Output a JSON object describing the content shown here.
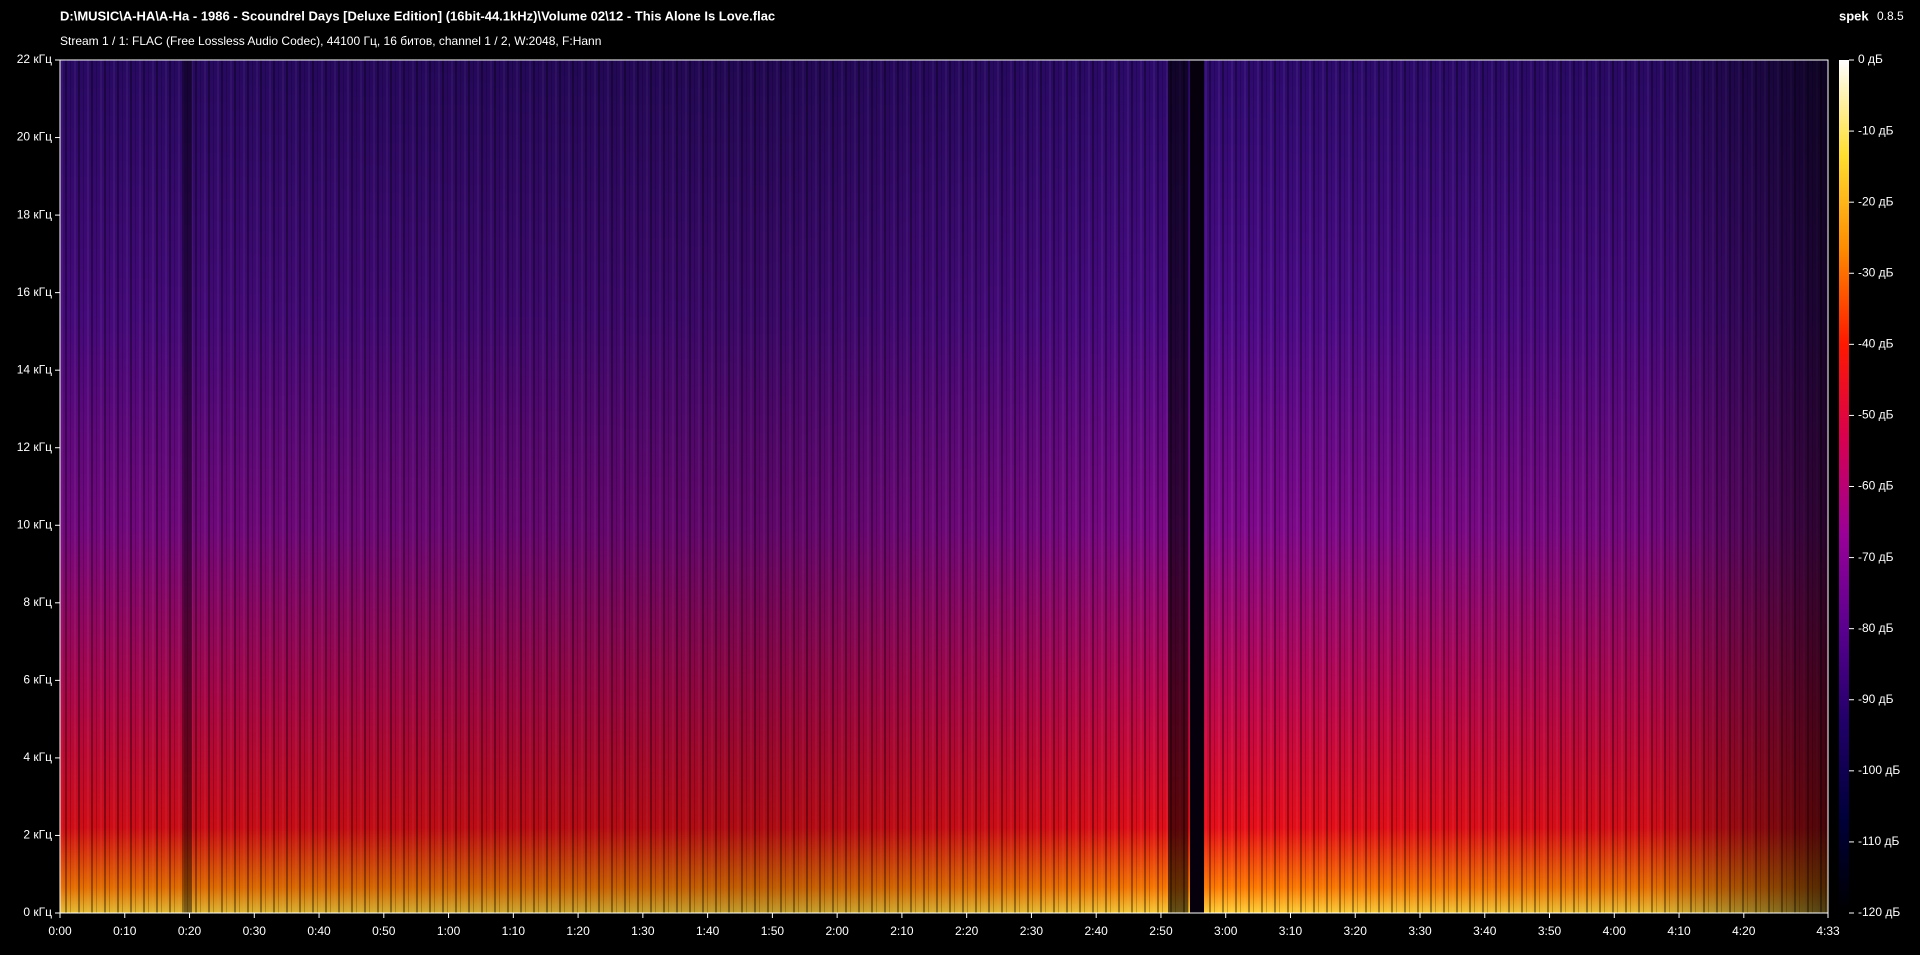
{
  "window": {
    "app": "spek",
    "version": "0.8.5"
  },
  "chart_data": {
    "type": "spectrogram",
    "title": "D:\\MUSIC\\A-HA\\A-Ha - 1986 - Scoundrel Days [Deluxe Edition] (16bit-44.1kHz)\\Volume 02\\12 - This Alone Is Love.flac",
    "subtitle": "Stream 1 / 1: FLAC (Free Lossless Audio Codec), 44100 Гц, 16 битов, channel 1 / 2, W:2048, F:Hann",
    "xlim": [
      0,
      273
    ],
    "xticks": [
      {
        "value": 0,
        "label": "0:00"
      },
      {
        "value": 10,
        "label": "0:10"
      },
      {
        "value": 20,
        "label": "0:20"
      },
      {
        "value": 30,
        "label": "0:30"
      },
      {
        "value": 40,
        "label": "0:40"
      },
      {
        "value": 50,
        "label": "0:50"
      },
      {
        "value": 60,
        "label": "1:00"
      },
      {
        "value": 70,
        "label": "1:10"
      },
      {
        "value": 80,
        "label": "1:20"
      },
      {
        "value": 90,
        "label": "1:30"
      },
      {
        "value": 100,
        "label": "1:40"
      },
      {
        "value": 110,
        "label": "1:50"
      },
      {
        "value": 120,
        "label": "2:00"
      },
      {
        "value": 130,
        "label": "2:10"
      },
      {
        "value": 140,
        "label": "2:20"
      },
      {
        "value": 150,
        "label": "2:30"
      },
      {
        "value": 160,
        "label": "2:40"
      },
      {
        "value": 170,
        "label": "2:50"
      },
      {
        "value": 180,
        "label": "3:00"
      },
      {
        "value": 190,
        "label": "3:10"
      },
      {
        "value": 200,
        "label": "3:20"
      },
      {
        "value": 210,
        "label": "3:30"
      },
      {
        "value": 220,
        "label": "3:40"
      },
      {
        "value": 230,
        "label": "3:50"
      },
      {
        "value": 240,
        "label": "4:00"
      },
      {
        "value": 250,
        "label": "4:10"
      },
      {
        "value": 260,
        "label": "4:20"
      },
      {
        "value": 273,
        "label": "4:33"
      }
    ],
    "ylim": [
      0,
      22
    ],
    "yticks": [
      {
        "value": 0,
        "label": "0 кГц"
      },
      {
        "value": 2,
        "label": "2 кГц"
      },
      {
        "value": 4,
        "label": "4 кГц"
      },
      {
        "value": 6,
        "label": "6 кГц"
      },
      {
        "value": 8,
        "label": "8 кГц"
      },
      {
        "value": 10,
        "label": "10 кГц"
      },
      {
        "value": 12,
        "label": "12 кГц"
      },
      {
        "value": 14,
        "label": "14 кГц"
      },
      {
        "value": 16,
        "label": "16 кГц"
      },
      {
        "value": 18,
        "label": "18 кГц"
      },
      {
        "value": 20,
        "label": "20 кГц"
      },
      {
        "value": 22,
        "label": "22 кГц"
      }
    ],
    "zlim": [
      -120,
      0
    ],
    "zticks": [
      {
        "value": 0,
        "label": "0 дБ"
      },
      {
        "value": -10,
        "label": "-10 дБ"
      },
      {
        "value": -20,
        "label": "-20 дБ"
      },
      {
        "value": -30,
        "label": "-30 дБ"
      },
      {
        "value": -40,
        "label": "-40 дБ"
      },
      {
        "value": -50,
        "label": "-50 дБ"
      },
      {
        "value": -60,
        "label": "-60 дБ"
      },
      {
        "value": -70,
        "label": "-70 дБ"
      },
      {
        "value": -80,
        "label": "-80 дБ"
      },
      {
        "value": -90,
        "label": "-90 дБ"
      },
      {
        "value": -100,
        "label": "-100 дБ"
      },
      {
        "value": -110,
        "label": "-110 дБ"
      },
      {
        "value": -120,
        "label": "-120 дБ"
      }
    ],
    "colormap": [
      "#000000",
      "#00003a",
      "#200068",
      "#5a0090",
      "#9a0098",
      "#d80050",
      "#ff1800",
      "#ff8a00",
      "#ffde30",
      "#ffffff"
    ]
  }
}
